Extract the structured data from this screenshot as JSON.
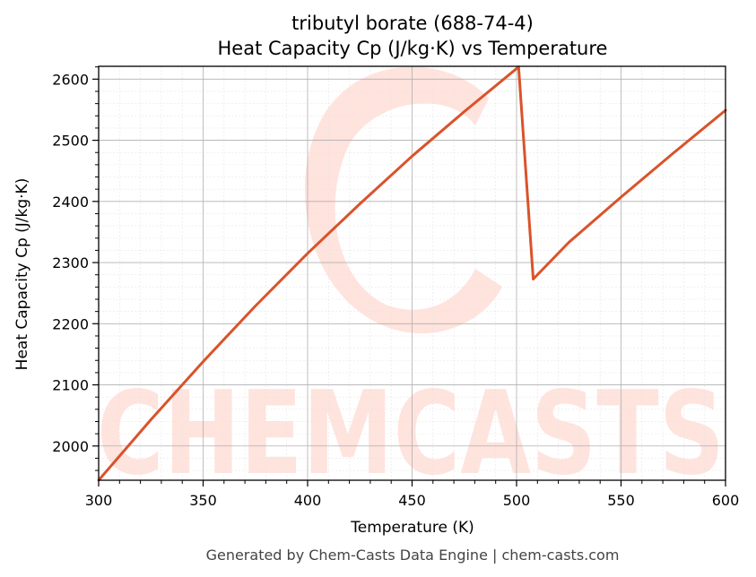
{
  "chart_data": {
    "type": "line",
    "title": "tributyl borate (688-74-4)",
    "subtitle": "Heat Capacity Cp (J/kg·K) vs Temperature",
    "xlabel": "Temperature (K)",
    "ylabel": "Heat Capacity Cp (J/kg·K)",
    "xlim": [
      300,
      600
    ],
    "ylim": [
      1944,
      2621
    ],
    "x_ticks": [
      300,
      350,
      400,
      450,
      500,
      550,
      600
    ],
    "y_ticks": [
      2000,
      2100,
      2200,
      2300,
      2400,
      2500,
      2600
    ],
    "grid": true,
    "legend": "none",
    "line_color": "#d9532b",
    "series": [
      {
        "x": [
          300,
          325,
          350,
          375,
          400,
          425,
          450,
          475,
          501,
          508,
          525,
          550,
          575,
          600
        ],
        "values": [
          1944,
          2043,
          2138,
          2229,
          2315,
          2396,
          2474,
          2547,
          2620,
          2273,
          2333,
          2407,
          2479,
          2549
        ]
      }
    ]
  },
  "watermark": {
    "text": "CHEMCASTS",
    "color": "#ffe3dd"
  },
  "footer": {
    "text": "Generated by Chem-Casts Data Engine | chem-casts.com"
  }
}
